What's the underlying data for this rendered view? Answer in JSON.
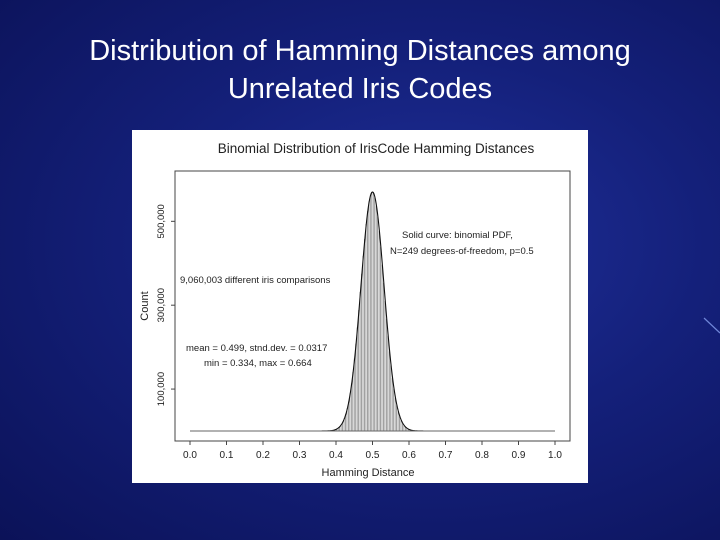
{
  "slide": {
    "title_line1": "Distribution of Hamming Distances among",
    "title_line2": "Unrelated Iris Codes"
  },
  "chart_data": {
    "type": "bar",
    "title": "Binomial Distribution of IrisCode Hamming Distances",
    "xlabel": "Hamming Distance",
    "ylabel": "Count",
    "xlim": [
      0.0,
      1.0
    ],
    "ylim": [
      0,
      620000
    ],
    "x_ticks": [
      "0.0",
      "0.1",
      "0.2",
      "0.3",
      "0.4",
      "0.5",
      "0.6",
      "0.7",
      "0.8",
      "0.9",
      "1.0"
    ],
    "y_ticks": [
      {
        "value": 100000,
        "label": "100,000"
      },
      {
        "value": 300000,
        "label": "300,000"
      },
      {
        "value": 500000,
        "label": "500,000"
      }
    ],
    "annotations": {
      "curve_line1": "Solid curve:  binomial PDF,",
      "curve_line2": "N=249 degrees-of-freedom, p=0.5",
      "comparisons": "9,060,003 different iris comparisons",
      "stats_line1": "mean = 0.499,  stnd.dev. = 0.0317",
      "stats_line2": "min = 0.334,  max = 0.664"
    },
    "histogram": {
      "mean": 0.499,
      "std": 0.0317,
      "min": 0.334,
      "max": 0.664,
      "peak": 570000
    },
    "curve": {
      "label": "binomial PDF",
      "N": 249,
      "p": 0.5
    },
    "grid": false
  }
}
